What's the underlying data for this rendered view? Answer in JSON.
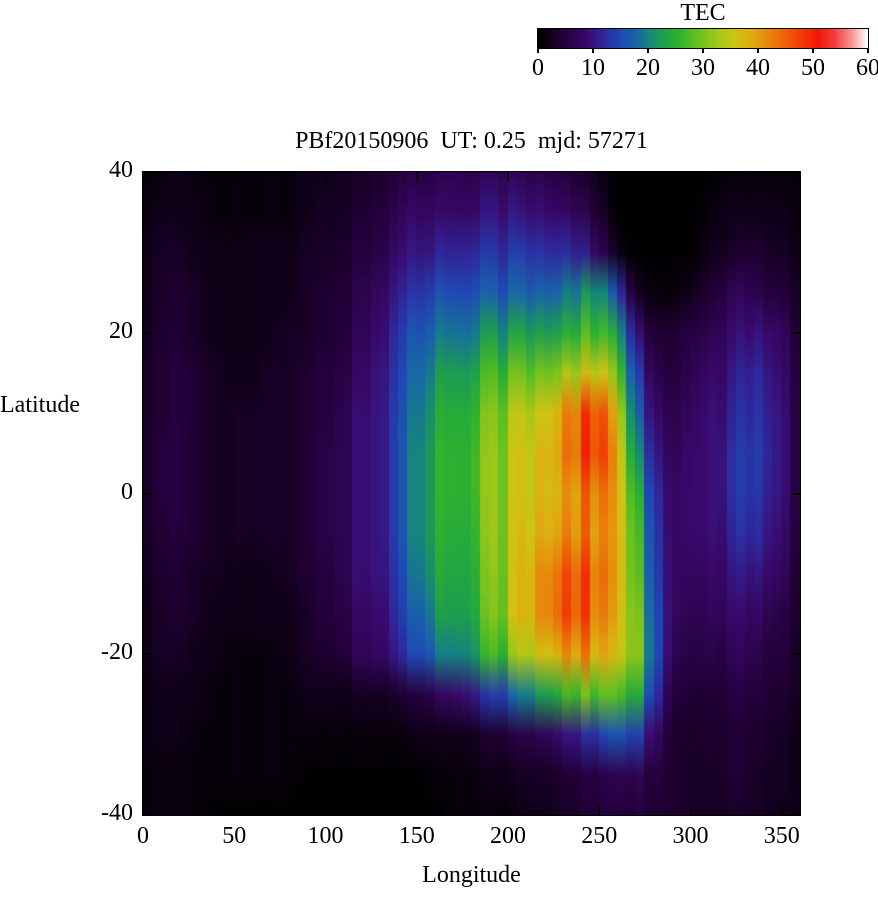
{
  "title": "PBf20150906  UT: 0.25  mjd: 57271",
  "colorbar": {
    "title": "TEC",
    "tick_labels": [
      "0",
      "10",
      "20",
      "30",
      "40",
      "50",
      "60"
    ],
    "tick_values": [
      0,
      10,
      20,
      30,
      40,
      50,
      60
    ],
    "min": 0,
    "max": 60
  },
  "axes": {
    "x_label": "Longitude",
    "y_label": "Latitude",
    "x_ticks": [
      "0",
      "50",
      "100",
      "150",
      "200",
      "250",
      "300",
      "350"
    ],
    "y_ticks": [
      "40",
      "20",
      "0",
      "-20",
      "-40"
    ]
  },
  "chart_data": {
    "type": "heatmap",
    "title": "PBf20150906  UT: 0.25  mjd: 57271",
    "xlabel": "Longitude",
    "ylabel": "Latitude",
    "colorbar_label": "TEC",
    "xlim": [
      0,
      360
    ],
    "ylim": [
      -40,
      40
    ],
    "colorbar_range": [
      0,
      60
    ],
    "x_tick_values": [
      0,
      50,
      100,
      150,
      200,
      250,
      300,
      350
    ],
    "y_tick_values": [
      40,
      20,
      0,
      -20,
      -40
    ],
    "x": [
      0,
      10,
      20,
      30,
      40,
      50,
      60,
      70,
      80,
      90,
      100,
      110,
      120,
      130,
      140,
      150,
      160,
      170,
      180,
      190,
      200,
      210,
      220,
      230,
      240,
      250,
      260,
      270,
      280,
      290,
      300,
      310,
      320,
      330,
      340,
      350,
      360
    ],
    "y": [
      40,
      35,
      30,
      25,
      20,
      15,
      10,
      5,
      0,
      -5,
      -10,
      -15,
      -20,
      -25,
      -30,
      -35,
      -40
    ],
    "values": [
      [
        1,
        1,
        2,
        1,
        1,
        1,
        1,
        1,
        1,
        2,
        2,
        3,
        3,
        4,
        5,
        6,
        6,
        7,
        7,
        7,
        7,
        6,
        6,
        5,
        4,
        2,
        0,
        0,
        0,
        0,
        0,
        0,
        1,
        1,
        1,
        1,
        1
      ],
      [
        1,
        2,
        2,
        2,
        1,
        1,
        1,
        1,
        1,
        2,
        3,
        3,
        4,
        5,
        7,
        8,
        8,
        9,
        9,
        10,
        10,
        9,
        9,
        8,
        7,
        4,
        0,
        0,
        0,
        0,
        0,
        1,
        2,
        2,
        2,
        2,
        1
      ],
      [
        2,
        3,
        3,
        2,
        2,
        2,
        2,
        2,
        2,
        3,
        3,
        4,
        5,
        6,
        9,
        10,
        11,
        12,
        13,
        13,
        13,
        13,
        12,
        12,
        11,
        8,
        2,
        0,
        0,
        0,
        0,
        2,
        3,
        4,
        4,
        3,
        2
      ],
      [
        2,
        3,
        4,
        3,
        2,
        2,
        2,
        2,
        2,
        3,
        4,
        5,
        6,
        8,
        11,
        13,
        15,
        16,
        17,
        17,
        17,
        17,
        17,
        18,
        20,
        22,
        15,
        3,
        1,
        1,
        2,
        4,
        6,
        7,
        6,
        5,
        3
      ],
      [
        2,
        4,
        4,
        3,
        2,
        2,
        2,
        2,
        3,
        3,
        4,
        5,
        7,
        9,
        13,
        16,
        18,
        20,
        21,
        22,
        22,
        22,
        22,
        23,
        26,
        28,
        24,
        10,
        4,
        4,
        5,
        6,
        8,
        9,
        10,
        8,
        4
      ],
      [
        3,
        4,
        5,
        4,
        3,
        2,
        2,
        3,
        3,
        4,
        5,
        6,
        8,
        10,
        14,
        18,
        21,
        24,
        25,
        27,
        28,
        28,
        29,
        31,
        34,
        38,
        31,
        15,
        6,
        5,
        6,
        8,
        9,
        11,
        12,
        9,
        5
      ],
      [
        3,
        4,
        5,
        4,
        3,
        3,
        3,
        3,
        3,
        4,
        5,
        7,
        9,
        10,
        15,
        19,
        23,
        26,
        28,
        30,
        32,
        33,
        35,
        39,
        45,
        49,
        38,
        18,
        8,
        6,
        7,
        9,
        10,
        12,
        13,
        10,
        5
      ],
      [
        3,
        5,
        5,
        4,
        3,
        3,
        3,
        3,
        3,
        4,
        6,
        7,
        9,
        10,
        15,
        20,
        24,
        27,
        29,
        31,
        33,
        35,
        37,
        40,
        46,
        50,
        41,
        22,
        10,
        7,
        8,
        9,
        11,
        13,
        14,
        10,
        5
      ],
      [
        3,
        5,
        5,
        4,
        3,
        3,
        3,
        3,
        3,
        4,
        6,
        7,
        9,
        10,
        15,
        20,
        24,
        27,
        29,
        31,
        33,
        35,
        37,
        38,
        42,
        45,
        41,
        27,
        12,
        8,
        8,
        9,
        11,
        13,
        13,
        10,
        5
      ],
      [
        3,
        4,
        5,
        4,
        3,
        3,
        3,
        3,
        3,
        4,
        6,
        7,
        9,
        10,
        15,
        20,
        24,
        26,
        28,
        31,
        33,
        36,
        38,
        40,
        42,
        43,
        41,
        29,
        13,
        8,
        8,
        9,
        10,
        12,
        12,
        9,
        5
      ],
      [
        2,
        4,
        4,
        3,
        3,
        2,
        2,
        2,
        3,
        4,
        5,
        7,
        9,
        10,
        14,
        19,
        23,
        25,
        27,
        30,
        33,
        37,
        41,
        44,
        46,
        45,
        41,
        30,
        14,
        8,
        7,
        8,
        9,
        10,
        10,
        8,
        4
      ],
      [
        2,
        3,
        4,
        3,
        2,
        2,
        2,
        2,
        2,
        3,
        5,
        6,
        8,
        9,
        13,
        17,
        21,
        24,
        26,
        29,
        33,
        37,
        41,
        45,
        46,
        44,
        40,
        32,
        15,
        8,
        6,
        7,
        8,
        8,
        8,
        6,
        4
      ],
      [
        2,
        3,
        3,
        2,
        2,
        1,
        1,
        1,
        2,
        3,
        4,
        5,
        7,
        8,
        11,
        15,
        18,
        21,
        23,
        26,
        29,
        33,
        36,
        39,
        41,
        40,
        38,
        33,
        16,
        7,
        5,
        6,
        6,
        7,
        6,
        5,
        3
      ],
      [
        1,
        2,
        2,
        2,
        1,
        1,
        1,
        1,
        1,
        2,
        2,
        2,
        3,
        3,
        4,
        5,
        7,
        9,
        11,
        13,
        16,
        19,
        22,
        25,
        28,
        29,
        29,
        26,
        13,
        5,
        4,
        4,
        5,
        5,
        5,
        4,
        3
      ],
      [
        1,
        2,
        2,
        1,
        1,
        1,
        1,
        1,
        1,
        1,
        1,
        1,
        1,
        1,
        1,
        2,
        2,
        2,
        3,
        4,
        5,
        6,
        7,
        9,
        11,
        14,
        17,
        15,
        8,
        4,
        3,
        4,
        4,
        4,
        4,
        3,
        2
      ],
      [
        1,
        1,
        1,
        1,
        1,
        1,
        1,
        1,
        1,
        0,
        0,
        0,
        0,
        0,
        0,
        0,
        1,
        1,
        1,
        2,
        2,
        3,
        3,
        4,
        5,
        6,
        7,
        7,
        5,
        4,
        3,
        3,
        4,
        4,
        3,
        3,
        2
      ],
      [
        1,
        1,
        1,
        1,
        0,
        0,
        0,
        0,
        0,
        0,
        0,
        0,
        0,
        0,
        0,
        0,
        0,
        1,
        1,
        1,
        1,
        2,
        2,
        3,
        4,
        5,
        5,
        5,
        4,
        4,
        3,
        3,
        3,
        3,
        3,
        2,
        2
      ]
    ],
    "palette": [
      [
        0.0,
        0,
        0,
        0
      ],
      [
        0.08,
        36,
        0,
        58
      ],
      [
        0.15,
        58,
        10,
        110
      ],
      [
        0.2,
        46,
        42,
        158
      ],
      [
        0.25,
        31,
        73,
        181
      ],
      [
        0.3,
        24,
        104,
        168
      ],
      [
        0.34,
        21,
        138,
        118
      ],
      [
        0.38,
        31,
        160,
        74
      ],
      [
        0.43,
        46,
        179,
        46
      ],
      [
        0.48,
        102,
        192,
        32
      ],
      [
        0.55,
        168,
        200,
        24
      ],
      [
        0.6,
        207,
        196,
        20
      ],
      [
        0.65,
        224,
        171,
        16
      ],
      [
        0.7,
        232,
        134,
        12
      ],
      [
        0.75,
        238,
        95,
        8
      ],
      [
        0.8,
        242,
        58,
        6
      ],
      [
        0.85,
        240,
        24,
        8
      ],
      [
        0.9,
        240,
        64,
        64
      ],
      [
        0.95,
        248,
        144,
        144
      ],
      [
        1.0,
        255,
        255,
        255
      ]
    ]
  }
}
